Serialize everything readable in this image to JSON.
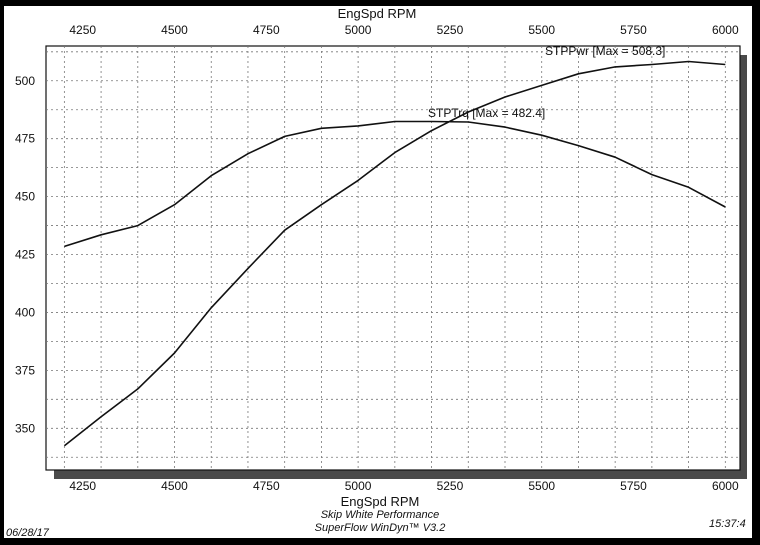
{
  "footer": {
    "date": "06/28/17",
    "time": "15:37:4",
    "company": "Skip White Performance",
    "software": "SuperFlow WinDyn™ V3.2"
  },
  "chart_data": {
    "type": "line",
    "xlabel_top": "EngSpd RPM",
    "xlabel_bottom": "EngSpd RPM",
    "ylabel": "",
    "x_ticks": [
      4250,
      4500,
      4750,
      5000,
      5250,
      5500,
      5750,
      6000
    ],
    "y_ticks": [
      350,
      375,
      400,
      425,
      450,
      475,
      500
    ],
    "xlim": [
      4150,
      6040
    ],
    "ylim": [
      332,
      515
    ],
    "grid": true,
    "x": [
      4200,
      4300,
      4400,
      4500,
      4600,
      4700,
      4800,
      4900,
      5000,
      5100,
      5200,
      5300,
      5400,
      5500,
      5600,
      5700,
      5800,
      5900,
      6000
    ],
    "series": [
      {
        "name": "STPTrq",
        "label": "STPTrq [Max = 482.4]",
        "values": [
          428.5,
          433.5,
          437.5,
          446.5,
          459,
          468.5,
          476,
          479.5,
          480.5,
          482.4,
          482.4,
          482.2,
          480,
          476.5,
          472,
          467,
          459.5,
          454,
          445.5
        ]
      },
      {
        "name": "STPPwr",
        "label": "STPPwr [Max = 508.3]",
        "values": [
          342.5,
          355,
          367,
          382.5,
          402,
          419,
          435.5,
          446.5,
          457,
          469,
          478.5,
          486.5,
          493,
          498,
          503,
          506,
          507,
          508.3,
          507
        ]
      }
    ]
  }
}
